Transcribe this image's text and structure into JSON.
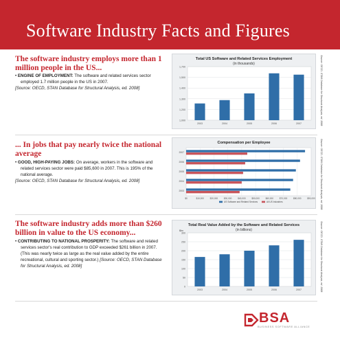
{
  "page": {
    "title": "Software Industry Facts and Figures",
    "brand_color": "#c4262e"
  },
  "sections": [
    {
      "heading": "The software industry employs more than 1 million people in the US...",
      "lead": "ENGINE OF EMPLOYMENT:",
      "text": " The software and related services sector employed 1.7 million people in the US in 2007.",
      "source": "[Source: OECD, STAN Database for Structural Analysis, ed. 2008]"
    },
    {
      "heading": "... In jobs that pay nearly twice the national average",
      "lead": "GOOD, HIGH-PAYING JOBS:",
      "text": " On average, workers in the software and related services sector were paid $85,600 in 2007. This is 195% of the national average.",
      "source": "[Source: OECD, STAN Database for Structural Analysis, ed. 2008]"
    },
    {
      "heading": "The software industry adds more than $260 billion in value to the US economy...",
      "lead": "CONTRIBUTING TO NATIONAL PROSPERITY:",
      "text": " The software and related services sector's real contribution to GDP exceeded $261 billion in 2007. (This was nearly twice as large as the real value added by the entire recreational, cultural and sporting sector.) ",
      "source": "[Source: OECD, STAN Database for Structural Analysis, ed. 2008]"
    }
  ],
  "chart_data": [
    {
      "type": "bar",
      "title": "Total US Software and Related Services Employment",
      "subtitle": "(in thousands)",
      "categories": [
        "2003",
        "2004",
        "2005",
        "2006",
        "2007"
      ],
      "values": [
        1250,
        1300,
        1400,
        1700,
        1680
      ],
      "ylim": [
        1000,
        1800
      ],
      "yticks": [
        "1,000",
        "1,200",
        "1,300",
        "1,400",
        "1,500",
        "1,700"
      ],
      "grid": true,
      "bar_color": "#2f6ea8",
      "side_note": "Source: OECD, STAN Database for Structural Analysis, ed. 2008"
    },
    {
      "type": "bar",
      "orientation": "horizontal",
      "title": "Compensation per Employee",
      "categories": [
        "2007",
        "2006",
        "2005",
        "2004",
        "2003"
      ],
      "series": [
        {
          "name": "US Software and Related Services",
          "values": [
            85600,
            82000,
            79000,
            77000,
            75000
          ],
          "color": "#2f6ea8"
        },
        {
          "name": "All US Industries",
          "values": [
            44000,
            42500,
            41000,
            40000,
            38500
          ],
          "color": "#c8545a"
        }
      ],
      "xticks": [
        "$0",
        "$10,000",
        "$20,000",
        "$30,000",
        "$40,000",
        "$50,000",
        "$60,000",
        "$70,000",
        "$80,000",
        "$90,000"
      ],
      "xlim": [
        0,
        90000
      ],
      "legend": "bottom",
      "side_note": "Source: OECD, STAN Database for Structural Analysis, ed. 2008"
    },
    {
      "type": "bar",
      "title": "Total Real Value Added by the Software and Related Services",
      "subtitle": "(in billions)",
      "ylabel": "$bn",
      "categories": [
        "2003",
        "2004",
        "2005",
        "2006",
        "2007"
      ],
      "values": [
        165,
        180,
        200,
        230,
        261
      ],
      "ylim": [
        0,
        300
      ],
      "yticks": [
        "0",
        "50",
        "100",
        "150",
        "200",
        "250",
        "300"
      ],
      "grid": true,
      "bar_color": "#2f6ea8",
      "side_note": "Source: OECD, STAN Database for Structural Analysis, ed. 2008"
    }
  ],
  "logo": {
    "word": "BSA",
    "tagline": "BUSINESS SOFTWARE ALLIANCE"
  }
}
